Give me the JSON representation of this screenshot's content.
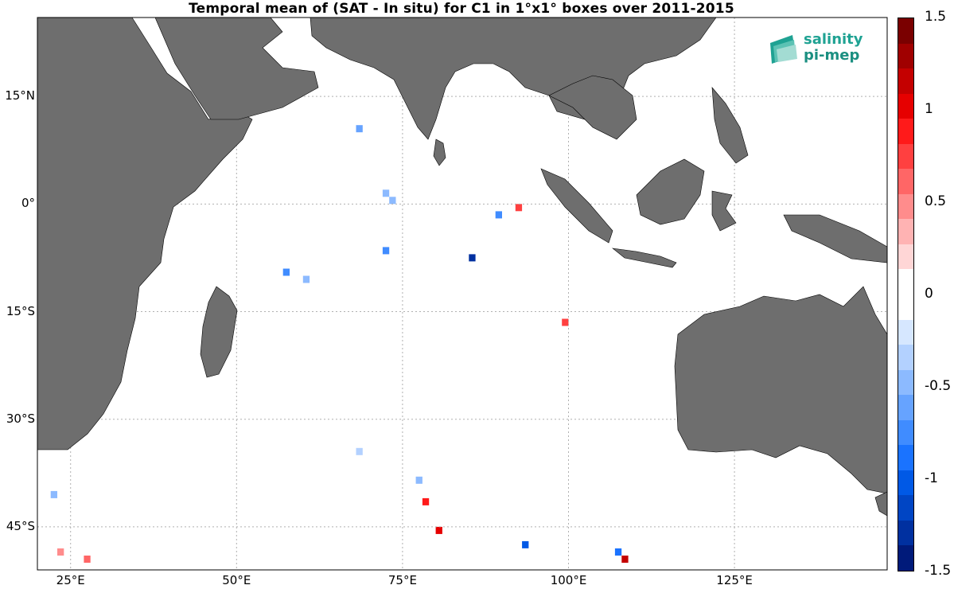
{
  "title": "Temporal mean of (SAT - In situ) for C1 in 1°x1° boxes over 2011-2015",
  "logo": {
    "line1": "salinity",
    "line2": "pi-mep"
  },
  "map": {
    "lon_range": [
      20,
      148
    ],
    "lat_range": [
      -51,
      26
    ],
    "lat_ticks": [
      {
        "value": 15,
        "label": "15°N"
      },
      {
        "value": 0,
        "label": "0°"
      },
      {
        "value": -15,
        "label": "15°S"
      },
      {
        "value": -30,
        "label": "30°S"
      },
      {
        "value": -45,
        "label": "45°S"
      }
    ],
    "lon_ticks": [
      {
        "value": 25,
        "label": "25°E"
      },
      {
        "value": 50,
        "label": "50°E"
      },
      {
        "value": 75,
        "label": "75°E"
      },
      {
        "value": 100,
        "label": "100°E"
      },
      {
        "value": 125,
        "label": "125°E"
      }
    ],
    "land_color": "#6e6e6e",
    "grid": true
  },
  "colorbar": {
    "range": [
      -1.5,
      1.5
    ],
    "tick_labels": [
      "1.5",
      "1",
      "0.5",
      "0",
      "-0.5",
      "-1",
      "-1.5"
    ],
    "colors": [
      "#7a0000",
      "#a00000",
      "#c40000",
      "#e60000",
      "#ff1a1a",
      "#ff4040",
      "#ff6666",
      "#ff8c8c",
      "#ffb3b3",
      "#ffd6d6",
      "#ffffff",
      "#ffffff",
      "#d6e7ff",
      "#b3d1ff",
      "#8cbaff",
      "#66a3ff",
      "#408cff",
      "#1a73ff",
      "#0059e6",
      "#0045c4",
      "#0030a0",
      "#001a7a"
    ]
  },
  "chart_data": {
    "type": "heatmap",
    "title": "Temporal mean of (SAT - In situ) for C1 in 1°x1° boxes over 2011-2015",
    "xlabel": "",
    "ylabel": "",
    "xlim": [
      20,
      148
    ],
    "ylim": [
      -51,
      26
    ],
    "value_range": [
      -1.5,
      1.5
    ],
    "cells": [
      {
        "lon": 68,
        "lat": 10,
        "v": -0.6
      },
      {
        "lon": 72,
        "lat": 1,
        "v": -0.5
      },
      {
        "lon": 73,
        "lat": 0,
        "v": -0.5
      },
      {
        "lon": 89,
        "lat": -2,
        "v": -0.7
      },
      {
        "lon": 85,
        "lat": -8,
        "v": -1.3
      },
      {
        "lon": 57,
        "lat": -10,
        "v": -0.7
      },
      {
        "lon": 72,
        "lat": -7,
        "v": -0.7
      },
      {
        "lon": 60,
        "lat": -11,
        "v": -0.5
      },
      {
        "lon": 92,
        "lat": -1,
        "v": 0.7
      },
      {
        "lon": 99,
        "lat": -17,
        "v": 0.7
      },
      {
        "lon": 78,
        "lat": -42,
        "v": 0.9
      },
      {
        "lon": 80,
        "lat": -46,
        "v": 1.0
      },
      {
        "lon": 93,
        "lat": -48,
        "v": -1.0
      },
      {
        "lon": 107,
        "lat": -49,
        "v": -0.9
      },
      {
        "lon": 108,
        "lat": -50,
        "v": 1.2
      },
      {
        "lon": 22,
        "lat": -41,
        "v": -0.5
      },
      {
        "lon": 27,
        "lat": -50,
        "v": 0.6
      },
      {
        "lon": 23,
        "lat": -49,
        "v": 0.5
      },
      {
        "lon": 68,
        "lat": -35,
        "v": -0.4
      },
      {
        "lon": 77,
        "lat": -39,
        "v": -0.5
      }
    ]
  }
}
